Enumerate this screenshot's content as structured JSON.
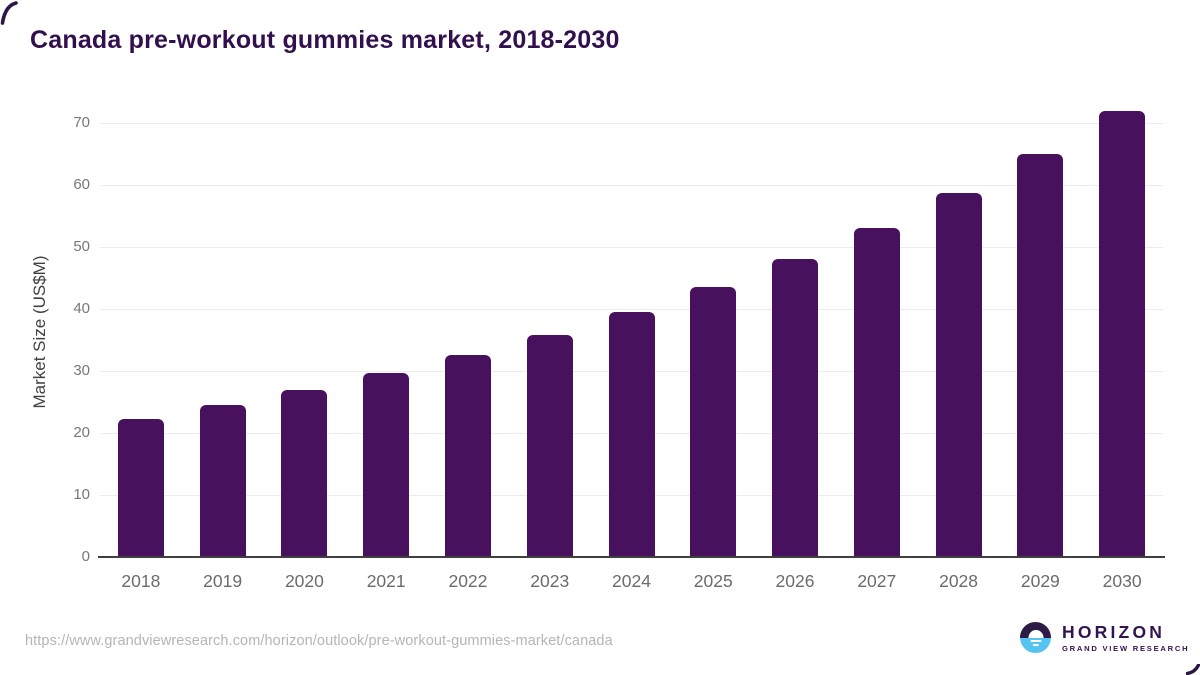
{
  "page": {
    "title": "Canada pre-workout gummies market, 2018-2030",
    "source_url": "https://www.grandviewresearch.com/horizon/outlook/pre-workout-gummies-market/canada"
  },
  "logo": {
    "name": "HORIZON",
    "subtitle": "GRAND VIEW RESEARCH",
    "icon": "horizon-sun-over-water-icon"
  },
  "chart_data": {
    "type": "bar",
    "title": "Canada pre-workout gummies market, 2018-2030",
    "xlabel": "",
    "ylabel": "Market Size (US$M)",
    "categories": [
      "2018",
      "2019",
      "2020",
      "2021",
      "2022",
      "2023",
      "2024",
      "2025",
      "2026",
      "2027",
      "2028",
      "2029",
      "2030"
    ],
    "values": [
      22.3,
      24.5,
      27.0,
      29.7,
      32.6,
      35.8,
      39.5,
      43.6,
      48.0,
      53.1,
      58.7,
      65.0,
      72.0
    ],
    "ylim": [
      0,
      72.5
    ],
    "yticks": [
      0,
      10,
      20,
      30,
      40,
      50,
      60,
      70
    ],
    "grid": true,
    "legend": false,
    "bar_color": "#48115e"
  },
  "colors": {
    "title": "#32104e",
    "bar": "#48115e",
    "gridline": "#ececec",
    "axis_line": "#3f3f3f",
    "tick_label": "#777777",
    "year_label": "#6b6b6b",
    "axis_title": "#414141",
    "url": "#b5b5b5",
    "logo_purple": "#2e1a47",
    "logo_blue": "#56c3f0",
    "corner_mark": "#2d1747"
  }
}
